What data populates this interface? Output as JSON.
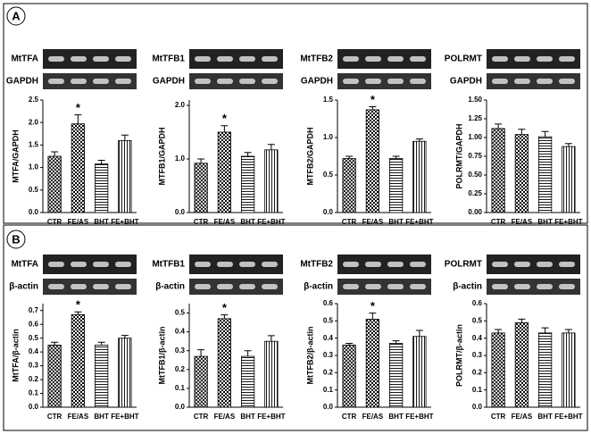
{
  "panels": [
    "A",
    "B"
  ],
  "chart_data": [
    {
      "type": "bar",
      "blot_labels": [
        "MtTFA",
        "GAPDH"
      ],
      "ylabel": "MTFA/GAPDH",
      "categories": [
        "CTR",
        "FE/AS",
        "BHT",
        "FE+BHT"
      ],
      "values": [
        1.25,
        1.97,
        1.08,
        1.6
      ],
      "errors": [
        0.1,
        0.2,
        0.08,
        0.12
      ],
      "annotation": "*",
      "ylim": [
        0,
        2.5
      ],
      "yticks": [
        {
          "value": 0,
          "label": "0.0"
        },
        0.5,
        {
          "value": 1,
          "label": "1.0"
        },
        1.5,
        {
          "value": 2,
          "label": "2.0"
        },
        2.5
      ],
      "patterns": [
        "crosshatch",
        "checker",
        "horizontal",
        "vertical"
      ]
    },
    {
      "type": "bar",
      "blot_labels": [
        "MtTFB1",
        "GAPDH"
      ],
      "ylabel": "MTFB1/GAPDH",
      "categories": [
        "CTR",
        "FE/AS",
        "BHT",
        "FE+BHT"
      ],
      "values": [
        0.92,
        1.5,
        1.05,
        1.17
      ],
      "errors": [
        0.08,
        0.12,
        0.07,
        0.1
      ],
      "annotation": "*",
      "ylim": [
        0,
        2.1
      ],
      "yticks": [
        {
          "value": 0,
          "label": "0.0"
        },
        {
          "value": 1,
          "label": "1.0"
        },
        {
          "value": 2,
          "label": "2.0"
        }
      ],
      "patterns": [
        "crosshatch",
        "checker",
        "horizontal",
        "vertical"
      ]
    },
    {
      "type": "bar",
      "blot_labels": [
        "MtTFB2",
        "GAPDH"
      ],
      "ylabel": "MTFB2/GAPDH",
      "categories": [
        "CTR",
        "FE/AS",
        "BHT",
        "FE+BHT"
      ],
      "values": [
        0.72,
        1.37,
        0.72,
        0.95
      ],
      "errors": [
        0.03,
        0.04,
        0.03,
        0.03
      ],
      "annotation": "*",
      "ylim": [
        0,
        1.5
      ],
      "yticks": [
        {
          "value": 0,
          "label": "0.0"
        },
        0.5,
        {
          "value": 1,
          "label": "1.0"
        },
        1.5
      ],
      "patterns": [
        "crosshatch",
        "checker",
        "horizontal",
        "vertical"
      ]
    },
    {
      "type": "bar",
      "blot_labels": [
        "POLRMT",
        "GAPDH"
      ],
      "ylabel": "POLRMT/GAPDH",
      "categories": [
        "CTR",
        "FE/AS",
        "BHT",
        "FE+BHT"
      ],
      "values": [
        1.12,
        1.04,
        1.01,
        0.88
      ],
      "errors": [
        0.06,
        0.07,
        0.07,
        0.04
      ],
      "ylim": [
        0,
        1.5
      ],
      "yticks": [
        {
          "value": 0,
          "label": "0.00"
        },
        0.25,
        {
          "value": 0.5,
          "label": "0.50"
        },
        0.75,
        {
          "value": 1,
          "label": "1.00"
        },
        1.25,
        {
          "value": 1.5,
          "label": "1.50"
        }
      ],
      "patterns": [
        "crosshatch",
        "checker",
        "horizontal",
        "vertical"
      ]
    },
    {
      "type": "bar",
      "blot_labels": [
        "MtTFA",
        "β-actin"
      ],
      "ylabel": "MtTFA/β-actin",
      "categories": [
        "CTR",
        "FE/AS",
        "BHT",
        "FE+BHT"
      ],
      "values": [
        0.45,
        0.67,
        0.45,
        0.5
      ],
      "errors": [
        0.02,
        0.02,
        0.02,
        0.02
      ],
      "annotation": "*",
      "ylim": [
        0,
        0.75
      ],
      "yticks": [
        {
          "value": 0,
          "label": "0.0"
        },
        0.1,
        0.2,
        0.3,
        0.4,
        0.5,
        0.6,
        0.7
      ],
      "patterns": [
        "crosshatch",
        "checker",
        "horizontal",
        "vertical"
      ]
    },
    {
      "type": "bar",
      "blot_labels": [
        "MtTFB1",
        "β-actin"
      ],
      "ylabel": "MtTFB1/β-actin",
      "categories": [
        "CTR",
        "FE/AS",
        "BHT",
        "FE+BHT"
      ],
      "values": [
        0.27,
        0.47,
        0.27,
        0.35
      ],
      "errors": [
        0.035,
        0.02,
        0.03,
        0.03
      ],
      "annotation": "*",
      "ylim": [
        0,
        0.55
      ],
      "yticks": [
        {
          "value": 0,
          "label": "0.0"
        },
        0.1,
        0.2,
        0.3,
        0.4,
        0.5
      ],
      "patterns": [
        "crosshatch",
        "checker",
        "horizontal",
        "vertical"
      ]
    },
    {
      "type": "bar",
      "blot_labels": [
        "MtTFB2",
        "β-actin"
      ],
      "ylabel": "MtTFB2/β-actin",
      "categories": [
        "CTR",
        "FE/AS",
        "BHT",
        "FE+BHT"
      ],
      "values": [
        0.36,
        0.51,
        0.37,
        0.41
      ],
      "errors": [
        0.01,
        0.035,
        0.015,
        0.035
      ],
      "annotation": "*",
      "ylim": [
        0,
        0.6
      ],
      "yticks": [
        {
          "value": 0,
          "label": "0.0"
        },
        0.1,
        0.2,
        0.3,
        0.4,
        0.5,
        0.6
      ],
      "patterns": [
        "crosshatch",
        "checker",
        "horizontal",
        "vertical"
      ]
    },
    {
      "type": "bar",
      "blot_labels": [
        "POLRMT",
        "β-actin"
      ],
      "ylabel": "POLRMT/β-actin",
      "categories": [
        "CTR",
        "FE/AS",
        "BHT",
        "FE+BHT"
      ],
      "values": [
        0.43,
        0.49,
        0.43,
        0.43
      ],
      "errors": [
        0.02,
        0.02,
        0.03,
        0.02
      ],
      "ylim": [
        0,
        0.6
      ],
      "yticks": [
        {
          "value": 0,
          "label": "0.0"
        },
        0.1,
        0.2,
        0.3,
        0.4,
        0.5,
        0.6
      ],
      "patterns": [
        "crosshatch",
        "checker",
        "horizontal",
        "vertical"
      ]
    }
  ]
}
